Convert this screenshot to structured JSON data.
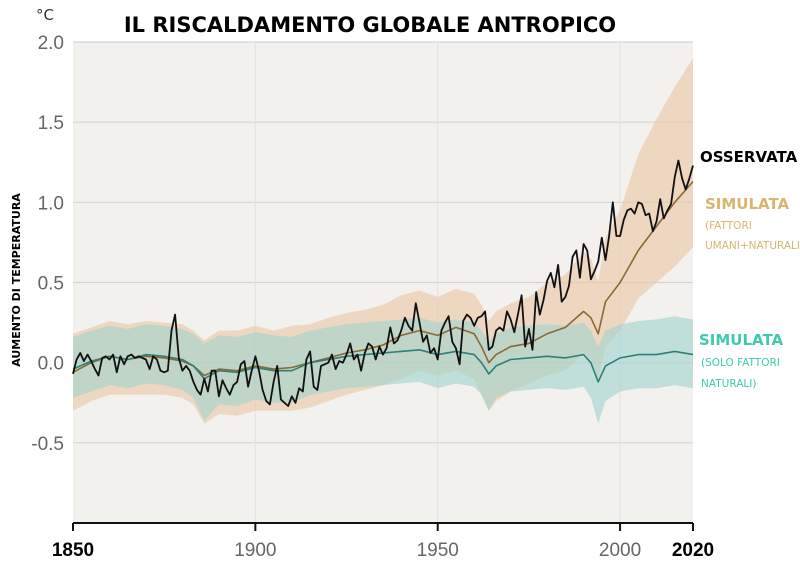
{
  "chart_data": {
    "type": "line",
    "title": "IL RISCALDAMENTO GLOBALE ANTROPICO",
    "unit": "°C",
    "ylabel": "AUMENTO DI TEMPERATURA",
    "xlabel": "",
    "xlim": [
      1850,
      2020
    ],
    "ylim": [
      -1.0,
      2.0
    ],
    "yticks": [
      {
        "value": 2.0,
        "label": "2.0"
      },
      {
        "value": 1.5,
        "label": "1.5"
      },
      {
        "value": 1.0,
        "label": "1.0"
      },
      {
        "value": 0.5,
        "label": "0.5"
      },
      {
        "value": 0.0,
        "label": "0.0"
      },
      {
        "value": -0.5,
        "label": "-0.5"
      }
    ],
    "xticks": [
      {
        "value": 1850,
        "label": "1850",
        "bold": true
      },
      {
        "value": 1900,
        "label": "1900",
        "bold": false
      },
      {
        "value": 1950,
        "label": "1950",
        "bold": false
      },
      {
        "value": 2000,
        "label": "2000",
        "bold": false
      },
      {
        "value": 2020,
        "label": "2020",
        "bold": true
      }
    ],
    "grid": true,
    "background_color": "#f3f1ed",
    "legend": [
      {
        "title": "OSSERVATA",
        "sub": [],
        "color": "#000000"
      },
      {
        "title": "SIMULATA",
        "sub": [
          "(FATTORI",
          "UMANI+NATURALI)"
        ],
        "color": "#d9b56e"
      },
      {
        "title": "SIMULATA",
        "sub": [
          "(SOLO FATTORI",
          "NATURALI)"
        ],
        "color": "#3ec9b0"
      }
    ],
    "series": [
      {
        "name": "OSSERVATA",
        "color": "#111111",
        "x": [
          1850,
          1851,
          1852,
          1853,
          1854,
          1855,
          1856,
          1857,
          1858,
          1859,
          1860,
          1861,
          1862,
          1863,
          1864,
          1865,
          1866,
          1867,
          1868,
          1869,
          1870,
          1871,
          1872,
          1873,
          1874,
          1875,
          1876,
          1877,
          1878,
          1879,
          1880,
          1881,
          1882,
          1883,
          1884,
          1885,
          1886,
          1887,
          1888,
          1889,
          1890,
          1891,
          1892,
          1893,
          1894,
          1895,
          1896,
          1897,
          1898,
          1899,
          1900,
          1901,
          1902,
          1903,
          1904,
          1905,
          1906,
          1907,
          1908,
          1909,
          1910,
          1911,
          1912,
          1913,
          1914,
          1915,
          1916,
          1917,
          1918,
          1919,
          1920,
          1921,
          1922,
          1923,
          1924,
          1925,
          1926,
          1927,
          1928,
          1929,
          1930,
          1931,
          1932,
          1933,
          1934,
          1935,
          1936,
          1937,
          1938,
          1939,
          1940,
          1941,
          1942,
          1943,
          1944,
          1945,
          1946,
          1947,
          1948,
          1949,
          1950,
          1951,
          1952,
          1953,
          1954,
          1955,
          1956,
          1957,
          1958,
          1959,
          1960,
          1961,
          1962,
          1963,
          1964,
          1965,
          1966,
          1967,
          1968,
          1969,
          1970,
          1971,
          1972,
          1973,
          1974,
          1975,
          1976,
          1977,
          1978,
          1979,
          1980,
          1981,
          1982,
          1983,
          1984,
          1985,
          1986,
          1987,
          1988,
          1989,
          1990,
          1991,
          1992,
          1993,
          1994,
          1995,
          1996,
          1997,
          1998,
          1999,
          2000,
          2001,
          2002,
          2003,
          2004,
          2005,
          2006,
          2007,
          2008,
          2009,
          2010,
          2011,
          2012,
          2013,
          2014,
          2015,
          2016,
          2017,
          2018,
          2019,
          2020
        ],
        "y": [
          -0.07,
          0.02,
          0.06,
          0.01,
          0.05,
          0.01,
          -0.04,
          -0.08,
          0.03,
          0.04,
          0.02,
          0.05,
          -0.06,
          0.04,
          -0.01,
          0.04,
          0.05,
          0.03,
          0.04,
          0.03,
          0.02,
          -0.04,
          0.04,
          0.02,
          -0.05,
          -0.06,
          -0.05,
          0.2,
          0.3,
          0.03,
          -0.05,
          -0.02,
          -0.05,
          -0.12,
          -0.17,
          -0.2,
          -0.1,
          -0.18,
          -0.05,
          -0.05,
          -0.21,
          -0.11,
          -0.16,
          -0.2,
          -0.14,
          -0.12,
          -0.01,
          0.01,
          -0.15,
          -0.05,
          0.04,
          -0.05,
          -0.17,
          -0.24,
          -0.26,
          -0.12,
          -0.02,
          -0.23,
          -0.25,
          -0.27,
          -0.21,
          -0.25,
          -0.16,
          -0.18,
          0.02,
          0.07,
          -0.15,
          -0.17,
          -0.02,
          -0.01,
          0.0,
          0.05,
          -0.04,
          0.01,
          0.0,
          0.05,
          0.12,
          0.02,
          0.05,
          -0.05,
          0.06,
          0.12,
          0.1,
          0.02,
          0.1,
          0.05,
          0.09,
          0.22,
          0.12,
          0.14,
          0.2,
          0.28,
          0.23,
          0.2,
          0.37,
          0.25,
          0.13,
          0.17,
          0.06,
          0.09,
          0.02,
          0.2,
          0.25,
          0.29,
          0.13,
          0.09,
          -0.01,
          0.26,
          0.3,
          0.28,
          0.23,
          0.28,
          0.29,
          0.32,
          0.08,
          0.1,
          0.2,
          0.22,
          0.2,
          0.32,
          0.27,
          0.19,
          0.3,
          0.42,
          0.1,
          0.21,
          0.08,
          0.44,
          0.3,
          0.39,
          0.51,
          0.56,
          0.47,
          0.61,
          0.38,
          0.41,
          0.48,
          0.66,
          0.7,
          0.53,
          0.74,
          0.7,
          0.52,
          0.57,
          0.63,
          0.78,
          0.64,
          0.79,
          1.0,
          0.79,
          0.79,
          0.89,
          0.95,
          0.96,
          0.93,
          1.0,
          0.99,
          0.92,
          0.93,
          0.82,
          0.88,
          1.02,
          0.9,
          0.95,
          0.99,
          1.16,
          1.26,
          1.15,
          1.08,
          1.15,
          1.23
        ]
      },
      {
        "name": "SIMULATA (FATTORI UMANI+NATURALI)",
        "color": "#8a6a30",
        "band_color": "#e9c7a3",
        "x": [
          1850,
          1855,
          1860,
          1865,
          1870,
          1875,
          1880,
          1883,
          1886,
          1890,
          1895,
          1900,
          1905,
          1910,
          1915,
          1920,
          1925,
          1930,
          1935,
          1940,
          1945,
          1950,
          1955,
          1960,
          1962,
          1964,
          1966,
          1970,
          1975,
          1980,
          1985,
          1990,
          1992,
          1994,
          1996,
          2000,
          2005,
          2010,
          2015,
          2020
        ],
        "y": [
          -0.06,
          0.0,
          0.04,
          0.02,
          0.04,
          0.03,
          0.01,
          -0.02,
          -0.08,
          -0.04,
          -0.05,
          -0.02,
          -0.04,
          -0.03,
          0.0,
          0.03,
          0.06,
          0.08,
          0.11,
          0.17,
          0.2,
          0.17,
          0.22,
          0.18,
          0.1,
          0.0,
          0.05,
          0.1,
          0.12,
          0.18,
          0.22,
          0.32,
          0.28,
          0.18,
          0.38,
          0.5,
          0.7,
          0.85,
          1.0,
          1.13
        ],
        "band_low": [
          -0.3,
          -0.24,
          -0.2,
          -0.2,
          -0.2,
          -0.2,
          -0.22,
          -0.26,
          -0.38,
          -0.32,
          -0.33,
          -0.3,
          -0.3,
          -0.3,
          -0.28,
          -0.24,
          -0.2,
          -0.17,
          -0.14,
          -0.1,
          -0.05,
          -0.08,
          -0.05,
          -0.1,
          -0.2,
          -0.3,
          -0.24,
          -0.18,
          -0.13,
          -0.08,
          -0.05,
          0.06,
          0.02,
          -0.1,
          0.1,
          0.2,
          0.4,
          0.5,
          0.6,
          0.72
        ],
        "band_high": [
          0.18,
          0.22,
          0.26,
          0.24,
          0.26,
          0.25,
          0.24,
          0.2,
          0.14,
          0.2,
          0.2,
          0.23,
          0.2,
          0.23,
          0.24,
          0.28,
          0.31,
          0.33,
          0.36,
          0.42,
          0.45,
          0.41,
          0.46,
          0.43,
          0.36,
          0.26,
          0.32,
          0.37,
          0.41,
          0.5,
          0.55,
          0.69,
          0.65,
          0.5,
          0.78,
          0.95,
          1.3,
          1.52,
          1.72,
          1.9
        ]
      },
      {
        "name": "SIMULATA (SOLO FATTORI NATURALI)",
        "color": "#2f7f78",
        "band_color": "#9ed3cd",
        "x": [
          1850,
          1855,
          1860,
          1865,
          1870,
          1875,
          1880,
          1883,
          1886,
          1890,
          1895,
          1900,
          1905,
          1910,
          1915,
          1920,
          1925,
          1930,
          1935,
          1940,
          1945,
          1950,
          1955,
          1960,
          1962,
          1964,
          1966,
          1970,
          1975,
          1980,
          1985,
          1990,
          1992,
          1994,
          1996,
          2000,
          2005,
          2010,
          2015,
          2020
        ],
        "y": [
          -0.04,
          0.01,
          0.04,
          0.02,
          0.05,
          0.04,
          0.02,
          -0.02,
          -0.1,
          -0.05,
          -0.06,
          -0.03,
          -0.05,
          -0.05,
          0.0,
          0.02,
          0.04,
          0.05,
          0.06,
          0.07,
          0.08,
          0.05,
          0.07,
          0.05,
          0.0,
          -0.07,
          -0.02,
          0.02,
          0.03,
          0.04,
          0.03,
          0.05,
          0.0,
          -0.12,
          -0.02,
          0.03,
          0.05,
          0.05,
          0.07,
          0.05
        ],
        "band_low": [
          -0.22,
          -0.18,
          -0.14,
          -0.16,
          -0.13,
          -0.14,
          -0.17,
          -0.22,
          -0.36,
          -0.26,
          -0.27,
          -0.23,
          -0.25,
          -0.25,
          -0.2,
          -0.18,
          -0.16,
          -0.15,
          -0.14,
          -0.13,
          -0.12,
          -0.16,
          -0.13,
          -0.15,
          -0.2,
          -0.3,
          -0.22,
          -0.18,
          -0.17,
          -0.16,
          -0.17,
          -0.15,
          -0.22,
          -0.38,
          -0.24,
          -0.18,
          -0.16,
          -0.16,
          -0.14,
          -0.16
        ],
        "band_high": [
          0.16,
          0.2,
          0.23,
          0.21,
          0.24,
          0.23,
          0.21,
          0.18,
          0.12,
          0.17,
          0.16,
          0.19,
          0.17,
          0.16,
          0.2,
          0.22,
          0.24,
          0.25,
          0.26,
          0.27,
          0.28,
          0.25,
          0.27,
          0.25,
          0.2,
          0.13,
          0.18,
          0.22,
          0.23,
          0.24,
          0.23,
          0.25,
          0.2,
          0.1,
          0.2,
          0.24,
          0.26,
          0.27,
          0.29,
          0.27
        ]
      }
    ]
  }
}
